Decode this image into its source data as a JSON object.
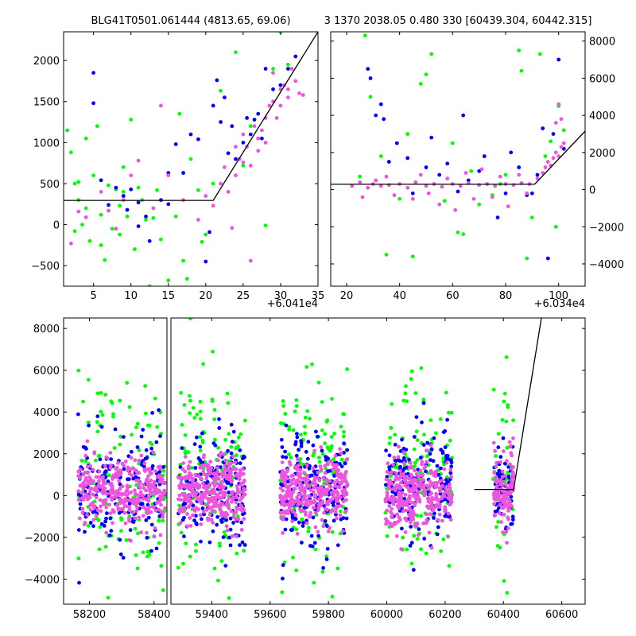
{
  "titles": {
    "left": "BLG41T0501.061444 (4813.65, 69.06)",
    "right": "3 1370 2038.05 0.480 330 [60439.304, 60442.315]"
  },
  "colors": {
    "green": "#00ff00",
    "blue": "#0000ff",
    "magenta": "#ee55dd",
    "model": "#000000"
  },
  "chart_data": [
    {
      "type": "scatter",
      "panel": "top-left zoom",
      "xlim": [
        1,
        35
      ],
      "ylim": [
        -750,
        2350
      ],
      "x_offset_label": "+6.041e4",
      "xticks": [
        5,
        10,
        15,
        20,
        25,
        30,
        35
      ],
      "yticks": [
        -500,
        0,
        500,
        1000,
        1500,
        2000
      ],
      "model_line": [
        [
          1,
          295
        ],
        [
          21,
          295
        ],
        [
          35,
          2350
        ]
      ],
      "series": [
        {
          "color": "green",
          "points": [
            [
              1.5,
              1150
            ],
            [
              2,
              880
            ],
            [
              2.5,
              500
            ],
            [
              3,
              300
            ],
            [
              3.5,
              0
            ],
            [
              4,
              1050
            ],
            [
              4.5,
              -200
            ],
            [
              5,
              600
            ],
            [
              5.5,
              1200
            ],
            [
              6,
              120
            ],
            [
              6.5,
              -430
            ],
            [
              7,
              480
            ],
            [
              7.5,
              -50
            ],
            [
              8,
              430
            ],
            [
              8.5,
              230
            ],
            [
              9,
              700
            ],
            [
              9.5,
              100
            ],
            [
              10,
              1280
            ],
            [
              10.5,
              -300
            ],
            [
              11,
              450
            ],
            [
              12,
              60
            ],
            [
              12.5,
              -750
            ],
            [
              13,
              80
            ],
            [
              14,
              -180
            ],
            [
              15,
              -680
            ],
            [
              16,
              100
            ],
            [
              17,
              -440
            ],
            [
              17.5,
              -660
            ],
            [
              18,
              800
            ],
            [
              19,
              420
            ],
            [
              19.5,
              -210
            ],
            [
              20,
              -120
            ],
            [
              21,
              500
            ],
            [
              22,
              1630
            ],
            [
              24,
              2100
            ],
            [
              25,
              720
            ],
            [
              26,
              1200
            ],
            [
              28,
              -10
            ],
            [
              29,
              1900
            ],
            [
              30,
              2350
            ],
            [
              31,
              1950
            ],
            [
              6,
              -250
            ],
            [
              3,
              520
            ],
            [
              8.5,
              -120
            ],
            [
              2.5,
              -80
            ],
            [
              11.5,
              300
            ],
            [
              13.5,
              420
            ],
            [
              16.5,
              1350
            ],
            [
              9,
              400
            ],
            [
              4,
              200
            ]
          ]
        },
        {
          "color": "blue",
          "points": [
            [
              5,
              1850
            ],
            [
              5,
              1480
            ],
            [
              6,
              540
            ],
            [
              7,
              240
            ],
            [
              8,
              450
            ],
            [
              9,
              350
            ],
            [
              10,
              430
            ],
            [
              11,
              -20
            ],
            [
              12,
              100
            ],
            [
              12.5,
              -200
            ],
            [
              14,
              300
            ],
            [
              15,
              630
            ],
            [
              16,
              980
            ],
            [
              17,
              630
            ],
            [
              18,
              1100
            ],
            [
              19,
              1040
            ],
            [
              20,
              -450
            ],
            [
              21,
              1450
            ],
            [
              21.5,
              1760
            ],
            [
              22,
              1250
            ],
            [
              23,
              870
            ],
            [
              23.5,
              1200
            ],
            [
              24,
              800
            ],
            [
              25,
              1000
            ],
            [
              26,
              1100
            ],
            [
              27,
              1350
            ],
            [
              28,
              1900
            ],
            [
              29,
              1650
            ],
            [
              30,
              1700
            ],
            [
              31,
              1900
            ],
            [
              32,
              2050
            ],
            [
              20.5,
              -90
            ],
            [
              22.5,
              1550
            ],
            [
              26.5,
              1280
            ],
            [
              9.5,
              180
            ],
            [
              11,
              270
            ],
            [
              15,
              250
            ],
            [
              25.5,
              1300
            ],
            [
              27.5,
              1050
            ]
          ]
        },
        {
          "color": "magenta",
          "points": [
            [
              2,
              -230
            ],
            [
              3,
              160
            ],
            [
              4,
              90
            ],
            [
              6,
              400
            ],
            [
              7,
              170
            ],
            [
              8,
              -50
            ],
            [
              9,
              300
            ],
            [
              10,
              600
            ],
            [
              11,
              780
            ],
            [
              13,
              200
            ],
            [
              15,
              600
            ],
            [
              17,
              300
            ],
            [
              20,
              350
            ],
            [
              21,
              230
            ],
            [
              22,
              500
            ],
            [
              22.5,
              700
            ],
            [
              23,
              400
            ],
            [
              23.5,
              -40
            ],
            [
              24,
              600
            ],
            [
              24.5,
              800
            ],
            [
              25,
              1100
            ],
            [
              25.5,
              950
            ],
            [
              26,
              720
            ],
            [
              26.5,
              1200
            ],
            [
              27,
              900
            ],
            [
              27.5,
              1150
            ],
            [
              28,
              1300
            ],
            [
              28.5,
              1450
            ],
            [
              29,
              1500
            ],
            [
              29.5,
              1300
            ],
            [
              30,
              1450
            ],
            [
              30.5,
              1700
            ],
            [
              31,
              1650
            ],
            [
              31.5,
              1900
            ],
            [
              32,
              1750
            ],
            [
              32.5,
              1600
            ],
            [
              33,
              1580
            ],
            [
              26,
              -440
            ],
            [
              27,
              1050
            ],
            [
              30,
              1650
            ],
            [
              28,
              1000
            ],
            [
              24,
              950
            ],
            [
              25,
              760
            ],
            [
              29,
              1850
            ],
            [
              31,
              1550
            ],
            [
              19,
              60
            ],
            [
              14,
              1450
            ]
          ]
        }
      ]
    },
    {
      "type": "scatter",
      "panel": "top-right zoom",
      "xlim": [
        14,
        110
      ],
      "ylim": [
        -5200,
        8500
      ],
      "x_offset_label": "+6.034e4",
      "xticks": [
        20,
        40,
        60,
        80,
        100
      ],
      "yticks": [
        -4000,
        -2000,
        0,
        2000,
        4000,
        6000,
        8000
      ],
      "model_line": [
        [
          14,
          295
        ],
        [
          91,
          295
        ],
        [
          110,
          3150
        ]
      ],
      "series": [
        {
          "color": "green",
          "points": [
            [
              27,
              8300
            ],
            [
              29,
              5000
            ],
            [
              35,
              -3500
            ],
            [
              45,
              -3600
            ],
            [
              48,
              5700
            ],
            [
              50,
              6200
            ],
            [
              52,
              7300
            ],
            [
              62,
              -2300
            ],
            [
              64,
              -2400
            ],
            [
              67,
              1000
            ],
            [
              80,
              800
            ],
            [
              85,
              7500
            ],
            [
              86,
              6400
            ],
            [
              88,
              -3700
            ],
            [
              93,
              7300
            ],
            [
              95,
              1800
            ],
            [
              97,
              2600
            ],
            [
              99,
              -2000
            ],
            [
              100,
              4500
            ],
            [
              102,
              3200
            ],
            [
              33,
              1800
            ],
            [
              40,
              -500
            ],
            [
              57,
              -600
            ],
            [
              70,
              -800
            ],
            [
              75,
              -300
            ],
            [
              60,
              2500
            ],
            [
              43,
              3000
            ],
            [
              25,
              700
            ],
            [
              90,
              -1500
            ],
            [
              78,
              300
            ]
          ]
        },
        {
          "color": "blue",
          "points": [
            [
              28,
              6500
            ],
            [
              29,
              6000
            ],
            [
              31,
              4000
            ],
            [
              33,
              4600
            ],
            [
              34,
              3800
            ],
            [
              36,
              1500
            ],
            [
              39,
              2500
            ],
            [
              43,
              1700
            ],
            [
              50,
              1200
            ],
            [
              52,
              2800
            ],
            [
              55,
              800
            ],
            [
              58,
              1400
            ],
            [
              64,
              4000
            ],
            [
              66,
              500
            ],
            [
              70,
              1000
            ],
            [
              72,
              1800
            ],
            [
              77,
              -1500
            ],
            [
              80,
              -200
            ],
            [
              85,
              1200
            ],
            [
              88,
              -300
            ],
            [
              90,
              -200
            ],
            [
              94,
              3300
            ],
            [
              96,
              -3700
            ],
            [
              98,
              3000
            ],
            [
              100,
              7000
            ],
            [
              102,
              2200
            ],
            [
              45,
              -200
            ],
            [
              62,
              -100
            ],
            [
              82,
              2000
            ],
            [
              92,
              800
            ]
          ]
        },
        {
          "color": "magenta",
          "points": [
            [
              22,
              200
            ],
            [
              25,
              400
            ],
            [
              28,
              100
            ],
            [
              30,
              300
            ],
            [
              33,
              200
            ],
            [
              36,
              250
            ],
            [
              40,
              300
            ],
            [
              43,
              100
            ],
            [
              46,
              400
            ],
            [
              50,
              200
            ],
            [
              53,
              300
            ],
            [
              56,
              150
            ],
            [
              60,
              300
            ],
            [
              63,
              200
            ],
            [
              66,
              350
            ],
            [
              70,
              250
            ],
            [
              73,
              300
            ],
            [
              76,
              200
            ],
            [
              80,
              300
            ],
            [
              83,
              250
            ],
            [
              86,
              350
            ],
            [
              89,
              300
            ],
            [
              92,
              600
            ],
            [
              94,
              900
            ],
            [
              95,
              1200
            ],
            [
              96,
              1500
            ],
            [
              97,
              1300
            ],
            [
              98,
              1700
            ],
            [
              99,
              2000
            ],
            [
              100,
              1800
            ],
            [
              101,
              2300
            ],
            [
              102,
              2500
            ],
            [
              100,
              4600
            ],
            [
              99,
              3600
            ],
            [
              101,
              3800
            ],
            [
              35,
              700
            ],
            [
              45,
              -500
            ],
            [
              55,
              -800
            ],
            [
              65,
              900
            ],
            [
              75,
              -400
            ],
            [
              85,
              800
            ],
            [
              38,
              -300
            ],
            [
              58,
              600
            ],
            [
              68,
              -500
            ],
            [
              78,
              700
            ],
            [
              88,
              -200
            ],
            [
              31,
              500
            ],
            [
              48,
              800
            ],
            [
              61,
              -1100
            ],
            [
              71,
              1100
            ],
            [
              81,
              -900
            ],
            [
              26,
              -400
            ],
            [
              51,
              -200
            ]
          ]
        }
      ]
    },
    {
      "type": "scatter",
      "panel": "bottom full light curve",
      "segments": [
        {
          "xlim": [
            58120,
            58440
          ],
          "xticks": [
            58200,
            58400
          ]
        },
        {
          "xlim": [
            59260,
            60680
          ],
          "xticks": [
            59400,
            59600,
            59800,
            60000,
            60200,
            60400,
            60600
          ]
        }
      ],
      "ylim": [
        -5200,
        8500
      ],
      "yticks": [
        -4000,
        -2000,
        0,
        2000,
        4000,
        6000,
        8000
      ],
      "model_line": [
        [
          60300,
          295
        ],
        [
          60435,
          295
        ],
        [
          60530,
          8500
        ]
      ],
      "clusters": [
        {
          "x_center": 58300,
          "x_half_width": 135
        },
        {
          "x_center": 59400,
          "x_half_width": 115
        },
        {
          "x_center": 59750,
          "x_half_width": 115
        },
        {
          "x_center": 60110,
          "x_half_width": 115
        },
        {
          "x_center": 60400,
          "x_half_width": 35
        }
      ]
    }
  ]
}
